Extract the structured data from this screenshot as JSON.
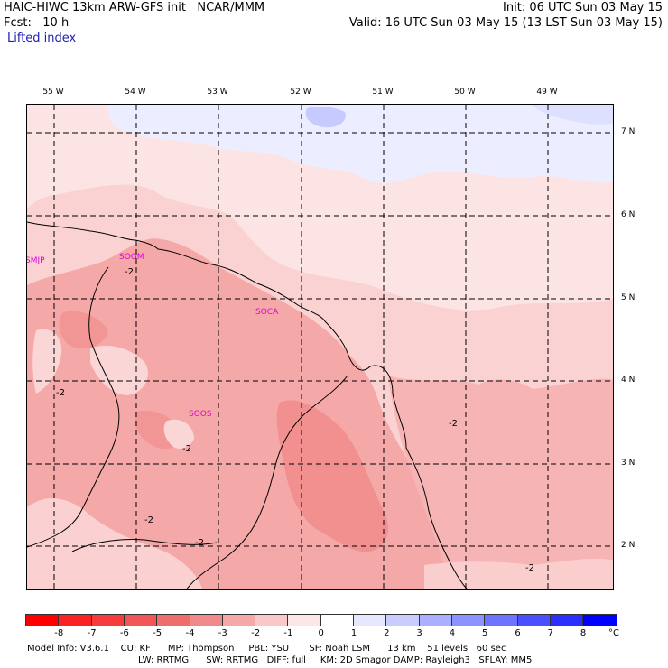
{
  "header": {
    "line1_left": "HAIC-HIWC 13km ARW-GFS init   NCAR/MMM",
    "line1_right": "Init: 06 UTC Sun 03 May 15",
    "line2_left": "Fcst:   10 h",
    "line2_right": "Valid: 16 UTC Sun 03 May 15 (13 LST Sun 03 May 15)",
    "field": "Lifted index"
  },
  "longitude_labels": [
    "55 W",
    "54 W",
    "53 W",
    "52 W",
    "51 W",
    "50 W",
    "49 W"
  ],
  "latitude_labels": [
    "7 N",
    "6 N",
    "5 N",
    "4 N",
    "3 N",
    "2 N"
  ],
  "stations": [
    "SMJP",
    "SOGM",
    "SOCA",
    "SOOS"
  ],
  "contour_labels": [
    "-2",
    "-2",
    "-2",
    "-2",
    "-2",
    "-2",
    "-2"
  ],
  "colorbar": {
    "labels": [
      "-8",
      "-7",
      "-6",
      "-5",
      "-4",
      "-3",
      "-2",
      "-1",
      "0",
      "1",
      "2",
      "3",
      "4",
      "5",
      "6",
      "7",
      "8"
    ],
    "unit": "°C",
    "colors": [
      "#ff0000",
      "#fa2222",
      "#f63c3c",
      "#f25555",
      "#ee6e6e",
      "#f08a8a",
      "#f5a8a8",
      "#fac8c8",
      "#fde6e6",
      "#ffffff",
      "#e6e8ff",
      "#c8ccff",
      "#aab0ff",
      "#8c92ff",
      "#6e74ff",
      "#4a50ff",
      "#2a2eff",
      "#0000ff"
    ]
  },
  "footer": {
    "line1": "Model Info: V3.6.1    CU: KF      MP: Thompson     PBL: YSU       SF: Noah LSM      13 km    51 levels   60 sec",
    "line2": "LW: RRTMG      SW: RRTMG   DIFF: full     KM: 2D Smagor DAMP: Rayleigh3   SFLAY: MM5"
  }
}
